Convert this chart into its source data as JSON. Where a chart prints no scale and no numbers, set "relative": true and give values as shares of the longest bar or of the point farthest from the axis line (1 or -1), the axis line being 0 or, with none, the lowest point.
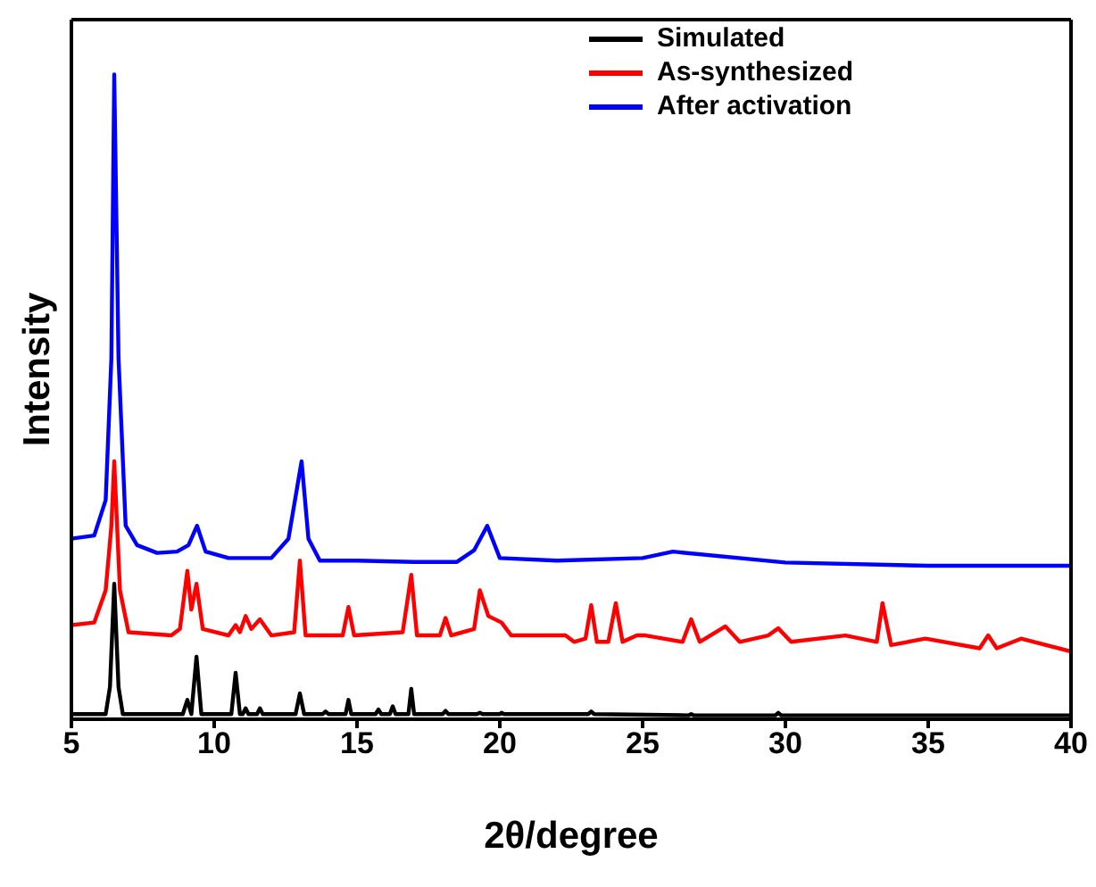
{
  "chart_data": {
    "type": "line",
    "relative": true,
    "xlabel": "2θ/degree",
    "ylabel": "Intensity",
    "xlim": [
      5,
      40
    ],
    "xticks": [
      5,
      10,
      15,
      20,
      25,
      30,
      35,
      40
    ],
    "legend": "top right",
    "tick_labels": "x",
    "series": [
      {
        "name": "Simulated",
        "color": "#000000",
        "x": [
          5,
          6.2,
          6.35,
          6.5,
          6.65,
          6.8,
          8.9,
          9.06,
          9.2,
          9.38,
          9.55,
          10.6,
          10.75,
          10.9,
          11.0,
          11.1,
          11.2,
          11.5,
          11.6,
          11.7,
          12.85,
          13.0,
          13.15,
          13.8,
          13.9,
          14.0,
          14.6,
          14.7,
          14.8,
          15.65,
          15.75,
          15.85,
          16.15,
          16.25,
          16.35,
          16.8,
          16.9,
          17.0,
          18.0,
          18.1,
          18.2,
          19.2,
          19.3,
          19.4,
          20.0,
          20.06,
          20.15,
          23.1,
          23.2,
          23.3,
          26.6,
          26.7,
          26.8,
          29.65,
          29.75,
          29.85,
          33.4,
          40
        ],
        "values": [
          0.008,
          0.008,
          0.05,
          0.21,
          0.05,
          0.008,
          0.008,
          0.03,
          0.008,
          0.097,
          0.008,
          0.008,
          0.072,
          0.008,
          0.008,
          0.017,
          0.008,
          0.008,
          0.017,
          0.008,
          0.008,
          0.04,
          0.008,
          0.008,
          0.012,
          0.008,
          0.008,
          0.03,
          0.008,
          0.008,
          0.015,
          0.008,
          0.008,
          0.02,
          0.008,
          0.008,
          0.047,
          0.008,
          0.008,
          0.013,
          0.008,
          0.008,
          0.01,
          0.008,
          0.008,
          0.01,
          0.008,
          0.008,
          0.012,
          0.008,
          0.006,
          0.008,
          0.006,
          0.006,
          0.01,
          0.006,
          0.006,
          0.006
        ]
      },
      {
        "name": "As-synthesized",
        "color": "#ff0000",
        "x": [
          5,
          5.8,
          6.2,
          6.4,
          6.5,
          6.7,
          7.0,
          8.5,
          8.8,
          9.06,
          9.2,
          9.38,
          9.6,
          10.5,
          10.75,
          10.9,
          11.1,
          11.3,
          11.6,
          12.0,
          12.8,
          13.0,
          13.2,
          14.5,
          14.7,
          14.9,
          16.6,
          16.9,
          17.1,
          17.9,
          18.1,
          18.3,
          19.1,
          19.3,
          19.6,
          20.06,
          20.4,
          22.3,
          22.6,
          23.0,
          23.2,
          23.4,
          23.8,
          24.06,
          24.3,
          24.8,
          25.1,
          26.4,
          26.7,
          27.0,
          27.9,
          28.4,
          29.4,
          29.75,
          30.2,
          32.1,
          33.2,
          33.4,
          33.7,
          34.9,
          36.8,
          37.1,
          37.4,
          38.25,
          40
        ],
        "values": [
          0.146,
          0.15,
          0.2,
          0.3,
          0.4,
          0.2,
          0.135,
          0.13,
          0.14,
          0.23,
          0.17,
          0.21,
          0.14,
          0.13,
          0.146,
          0.135,
          0.16,
          0.14,
          0.155,
          0.13,
          0.135,
          0.246,
          0.13,
          0.13,
          0.174,
          0.13,
          0.135,
          0.224,
          0.13,
          0.13,
          0.157,
          0.13,
          0.14,
          0.2,
          0.16,
          0.15,
          0.13,
          0.13,
          0.12,
          0.125,
          0.177,
          0.12,
          0.12,
          0.18,
          0.12,
          0.13,
          0.13,
          0.12,
          0.155,
          0.12,
          0.144,
          0.12,
          0.13,
          0.141,
          0.12,
          0.13,
          0.12,
          0.18,
          0.115,
          0.125,
          0.11,
          0.13,
          0.11,
          0.125,
          0.105
        ]
      },
      {
        "name": "After activation",
        "color": "#0000ff",
        "x": [
          5,
          5.8,
          6.2,
          6.4,
          6.5,
          6.65,
          6.9,
          7.3,
          8.0,
          8.7,
          9.1,
          9.4,
          9.7,
          10.5,
          12.0,
          12.6,
          13.06,
          13.3,
          13.7,
          15.0,
          17.0,
          18.5,
          19.1,
          19.56,
          20.0,
          22.0,
          25.0,
          26.06,
          30.0,
          35.0,
          40
        ],
        "values": [
          0.28,
          0.285,
          0.34,
          0.56,
          1.0,
          0.56,
          0.3,
          0.27,
          0.258,
          0.26,
          0.27,
          0.3,
          0.26,
          0.25,
          0.25,
          0.28,
          0.4,
          0.28,
          0.246,
          0.246,
          0.244,
          0.244,
          0.262,
          0.3,
          0.25,
          0.246,
          0.25,
          0.26,
          0.243,
          0.238,
          0.238
        ]
      }
    ]
  }
}
